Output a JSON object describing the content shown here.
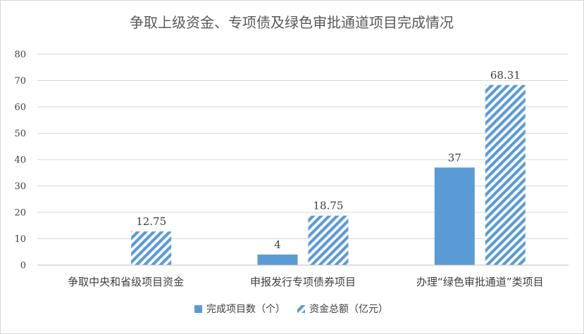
{
  "chart_data": {
    "type": "bar",
    "title": "争取上级资金、专项债及绿色审批通道项目完成情况",
    "xlabel": "",
    "ylabel": "",
    "ylim": [
      0,
      80
    ],
    "yticks": [
      "0",
      "10",
      "20",
      "30",
      "40",
      "50",
      "60",
      "70",
      "80"
    ],
    "grid": true,
    "legend_position": "bottom",
    "categories": [
      "争取中央和省级项目资金",
      "申报发行专项债券项目",
      "办理“绿色审批通道”类项目"
    ],
    "series": [
      {
        "name": "完成项目数（个）",
        "values": [
          null,
          4,
          37
        ],
        "labels": [
          "",
          "4",
          "37"
        ],
        "color": "#5b9bd5",
        "fill": "solid"
      },
      {
        "name": "资金总额（亿元）",
        "values": [
          12.75,
          18.75,
          68.31
        ],
        "labels": [
          "12.75",
          "18.75",
          "68.31"
        ],
        "color": "#5b9bd5",
        "fill": "diagonal-stripes"
      }
    ]
  }
}
